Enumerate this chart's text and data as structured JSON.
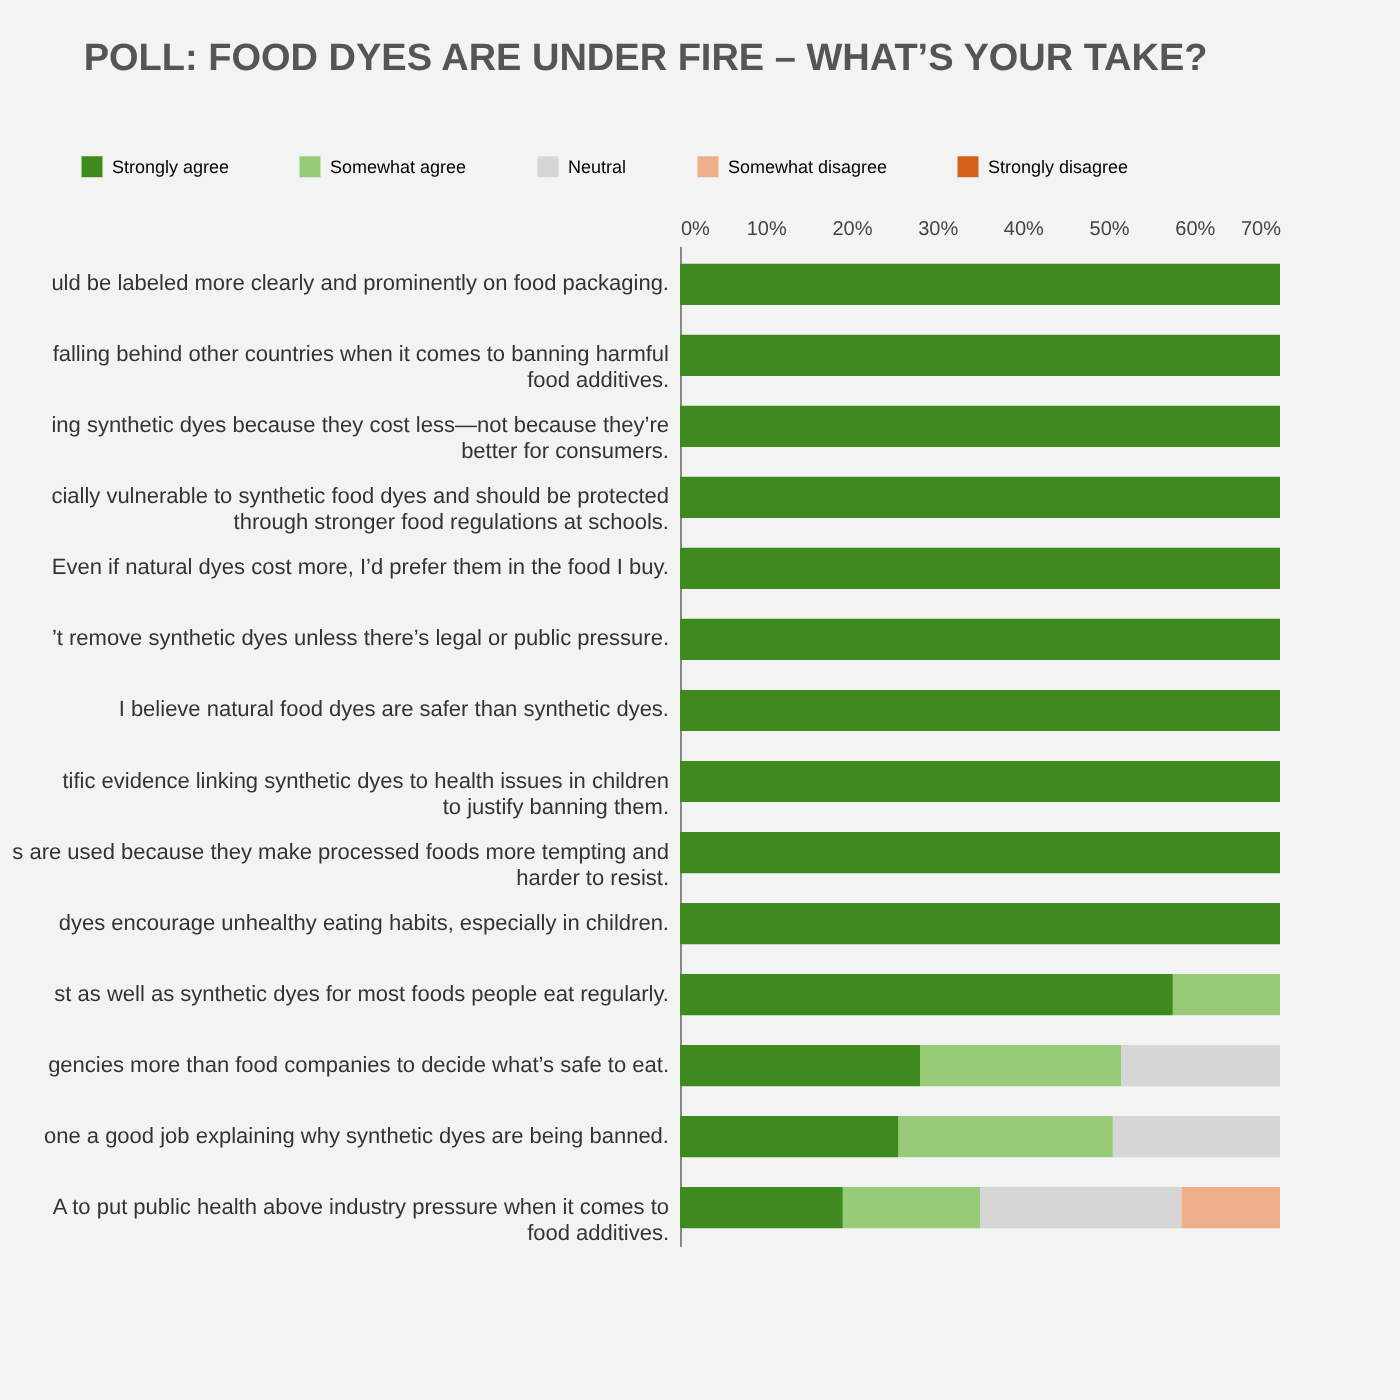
{
  "chart_data": {
    "type": "bar",
    "orientation": "horizontal",
    "stacked": true,
    "title": "POLL: FOOD DYES ARE UNDER FIRE – WHAT’S YOUR TAKE?",
    "categories": [
      "uld be labeled more clearly and prominently on food packaging.",
      "falling behind other countries when it comes to banning harmful\nfood additives.",
      "ing synthetic dyes because they cost less—not because they’re\nbetter for consumers.",
      "cially vulnerable to synthetic food dyes and should be protected\nthrough stronger food regulations at schools.",
      "Even if natural dyes cost more, I’d prefer them in the food I buy.",
      "’t remove synthetic dyes unless there’s legal or public pressure.",
      "I believe natural food dyes are safer than synthetic dyes.",
      "tific evidence linking synthetic dyes to health issues in children\nto justify banning them.",
      "s are used because they make processed foods more tempting and\nharder to resist.",
      "dyes encourage unhealthy eating habits, especially in children.",
      "st as well as synthetic dyes for most foods people eat regularly.",
      "gencies more than food companies to decide what’s safe to eat.",
      "one a good job explaining why synthetic dyes are being banned.",
      "A to put public health above industry pressure when it comes to\nfood additives."
    ],
    "series": [
      {
        "name": "Strongly agree",
        "color": "#3f8a1e",
        "values": [
          70,
          70,
          70,
          70,
          70,
          70,
          70,
          70,
          70,
          70,
          57.5,
          28,
          25.5,
          19
        ]
      },
      {
        "name": "Somewhat agree",
        "color": "#98cb78",
        "values": [
          null,
          null,
          null,
          null,
          null,
          null,
          null,
          null,
          null,
          null,
          12.5,
          23.5,
          25,
          16
        ]
      },
      {
        "name": "Neutral",
        "color": "#d6d6d6",
        "values": [
          null,
          null,
          null,
          null,
          null,
          null,
          null,
          null,
          null,
          null,
          null,
          18.5,
          19.5,
          23.5
        ]
      },
      {
        "name": "Somewhat disagree",
        "color": "#eeaf8a",
        "values": [
          null,
          null,
          null,
          null,
          null,
          null,
          null,
          null,
          null,
          null,
          null,
          null,
          null,
          11.5
        ]
      },
      {
        "name": "Strongly disagree",
        "color": "#d4601a",
        "values": [
          null,
          null,
          null,
          null,
          null,
          null,
          null,
          null,
          null,
          null,
          null,
          null,
          null,
          null
        ]
      }
    ],
    "xlim": [
      0,
      70
    ],
    "xticks": [
      {
        "value": 0,
        "label": "0%"
      },
      {
        "value": 10,
        "label": "10%"
      },
      {
        "value": 20,
        "label": "20%"
      },
      {
        "value": 30,
        "label": "30%"
      },
      {
        "value": 40,
        "label": "40%"
      },
      {
        "value": 50,
        "label": "50%"
      },
      {
        "value": 60,
        "label": "60%"
      },
      {
        "value": 70,
        "label": "70%"
      }
    ],
    "legend": "top",
    "grid": false
  }
}
